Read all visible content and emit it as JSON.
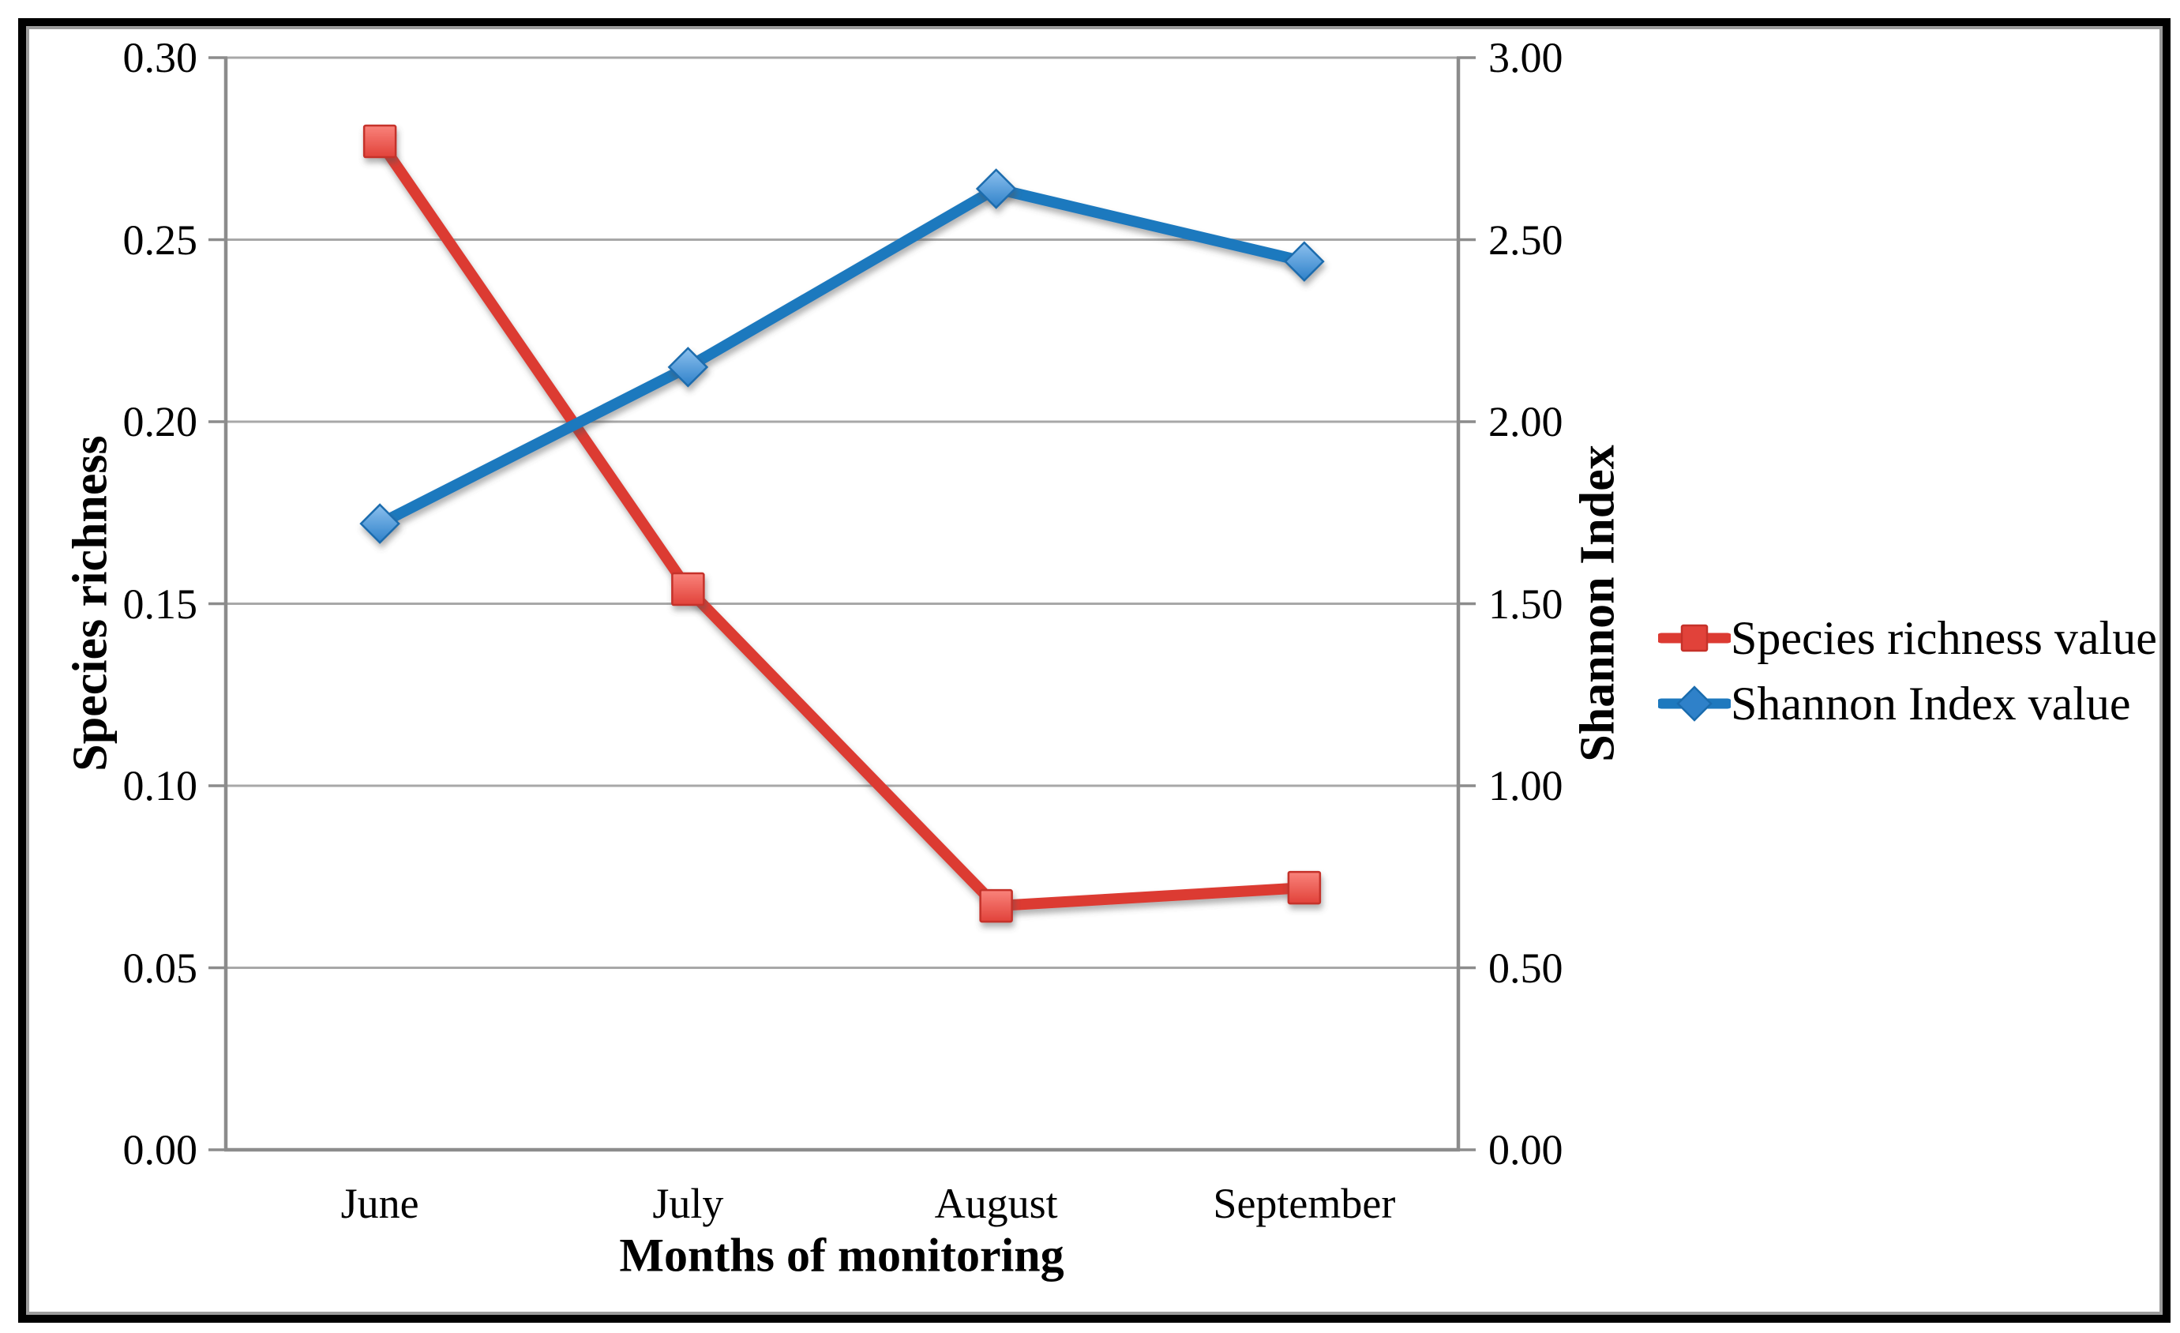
{
  "chart_data": {
    "type": "line",
    "categories": [
      "June",
      "July",
      "August",
      "September"
    ],
    "series": [
      {
        "name": "Species richness value",
        "axis": "left",
        "marker": "square",
        "color": "#DC3A32",
        "marker_fill_light": "#F9837B",
        "marker_fill_dark": "#E1423A",
        "marker_stroke": "#C53129",
        "values": [
          0.277,
          0.154,
          0.067,
          0.072
        ]
      },
      {
        "name": "Shannon Index value",
        "axis": "right",
        "marker": "diamond",
        "color": "#1E79BE",
        "marker_fill_light": "#8CC0EE",
        "marker_fill_dark": "#2F81C9",
        "marker_stroke": "#1A6CAE",
        "values": [
          1.72,
          2.15,
          2.64,
          2.44
        ]
      }
    ],
    "x_axis": {
      "label": "Months of monitoring"
    },
    "left_axis": {
      "label": "Species richness",
      "min": 0.0,
      "max": 0.3,
      "ticks": [
        "0.30",
        "0.25",
        "0.20",
        "0.15",
        "0.10",
        "0.05",
        "0.00"
      ]
    },
    "right_axis": {
      "label": "Shannon Index",
      "min": 0.0,
      "max": 3.0,
      "ticks": [
        "3.00",
        "2.50",
        "2.00",
        "1.50",
        "1.00",
        "0.50",
        "0.00"
      ]
    },
    "legend": {
      "position": "right"
    },
    "grid": true,
    "colors": {
      "gridline": "#A8A8A8",
      "axis": "#8C8C8C",
      "text": "#000000",
      "background": "#FFFFFF",
      "frame": "#000000"
    }
  }
}
